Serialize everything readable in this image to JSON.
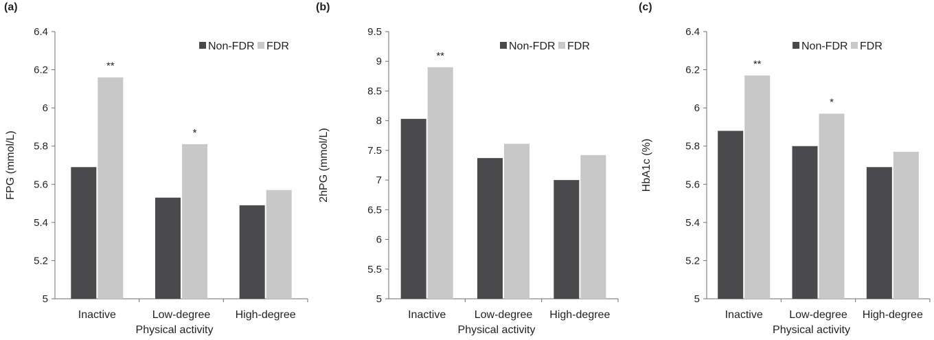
{
  "chart_data": [
    {
      "type": "bar",
      "panel_label": "(a)",
      "ylabel": "FPG (mmol/L)",
      "xlabel": "Physical activity",
      "categories": [
        "Inactive",
        "Low-degree",
        "High-degree"
      ],
      "ylim": [
        5,
        6.4
      ],
      "yticks": [
        "5",
        "5.2",
        "5.4",
        "5.6",
        "5.8",
        "6",
        "6.2",
        "6.4"
      ],
      "ytick_values": [
        5,
        5.2,
        5.4,
        5.6,
        5.8,
        6,
        6.2,
        6.4
      ],
      "series": [
        {
          "name": "Non-FDR",
          "color": "#4a4a4c",
          "values": [
            5.69,
            5.53,
            5.49
          ]
        },
        {
          "name": "FDR",
          "color": "#c8c8c8",
          "values": [
            6.16,
            5.81,
            5.57
          ]
        }
      ],
      "annotations": [
        "**",
        "*",
        ""
      ],
      "legend_position": "top-right",
      "grid": false
    },
    {
      "type": "bar",
      "panel_label": "(b)",
      "ylabel": "2hPG (mmol/L)",
      "xlabel": "Physical activity",
      "categories": [
        "Inactive",
        "Low-degree",
        "High-degree"
      ],
      "ylim": [
        5,
        9.5
      ],
      "yticks": [
        "5",
        "5.5",
        "6",
        "6.5",
        "7",
        "7.5",
        "8",
        "8.5",
        "9",
        "9.5"
      ],
      "ytick_values": [
        5,
        5.5,
        6,
        6.5,
        7,
        7.5,
        8,
        8.5,
        9,
        9.5
      ],
      "series": [
        {
          "name": "Non-FDR",
          "color": "#4a4a4c",
          "values": [
            8.03,
            7.37,
            7.0
          ]
        },
        {
          "name": "FDR",
          "color": "#c8c8c8",
          "values": [
            8.9,
            7.61,
            7.42
          ]
        }
      ],
      "annotations": [
        "**",
        "",
        ""
      ],
      "legend_position": "top-right",
      "grid": false
    },
    {
      "type": "bar",
      "panel_label": "(c)",
      "ylabel": "HbA1c (%)",
      "xlabel": "Physical activity",
      "categories": [
        "Inactive",
        "Low-degree",
        "High-degree"
      ],
      "ylim": [
        5,
        6.4
      ],
      "yticks": [
        "5",
        "5.2",
        "5.4",
        "5.6",
        "5.8",
        "6",
        "6.2",
        "6.4"
      ],
      "ytick_values": [
        5,
        5.2,
        5.4,
        5.6,
        5.8,
        6,
        6.2,
        6.4
      ],
      "series": [
        {
          "name": "Non-FDR",
          "color": "#4a4a4c",
          "values": [
            5.88,
            5.8,
            5.69
          ]
        },
        {
          "name": "FDR",
          "color": "#c8c8c8",
          "values": [
            6.17,
            5.97,
            5.77
          ]
        }
      ],
      "annotations": [
        "**",
        "*",
        ""
      ],
      "legend_position": "top-right",
      "grid": false
    }
  ]
}
